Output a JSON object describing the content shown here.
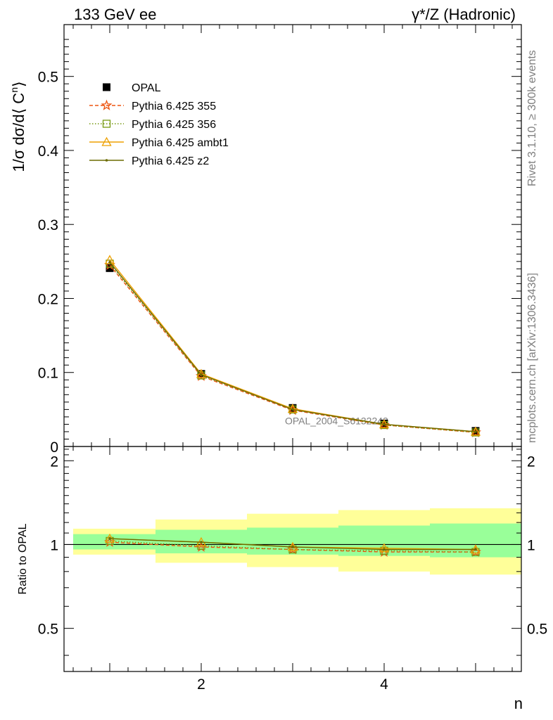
{
  "header": {
    "left_title": "133 GeV ee",
    "right_title": "γ*/Z (Hadronic)"
  },
  "side_labels": {
    "rivet": "Rivet 3.1.10, ≥ 300k events",
    "mcplots": "mcplots.cern.ch [arXiv:1306.3436]"
  },
  "watermark": "OPAL_2004_S6132243",
  "colors": {
    "data": "#000000",
    "p355": "#ee5511",
    "p356": "#779911",
    "ambt1": "#eea000",
    "z2": "#6b6b00",
    "band_inner": "#99ff99",
    "band_outer": "#ffff99"
  },
  "chart_data": [
    {
      "type": "line",
      "panel": "main",
      "ylabel_parts": {
        "prefix": "1/σ dσ/d⟨ C",
        "sup": "n",
        "suffix": "⟩"
      },
      "ylim": [
        0,
        0.57
      ],
      "xlim": [
        0.5,
        5.5
      ],
      "yticks": [
        {
          "v": 0,
          "label": "0"
        },
        {
          "v": 0.1,
          "label": "0.1"
        },
        {
          "v": 0.2,
          "label": "0.2"
        },
        {
          "v": 0.3,
          "label": "0.3"
        },
        {
          "v": 0.4,
          "label": "0.4"
        },
        {
          "v": 0.5,
          "label": "0.5"
        }
      ],
      "x": [
        1,
        2,
        3,
        4,
        5
      ],
      "legend_position": "top-left",
      "legend": [
        {
          "key": "data",
          "label": "OPAL"
        },
        {
          "key": "p355",
          "label": "Pythia 6.425 355"
        },
        {
          "key": "p356",
          "label": "Pythia 6.425 356"
        },
        {
          "key": "ambt1",
          "label": "Pythia 6.425 ambt1"
        },
        {
          "key": "z2",
          "label": "Pythia 6.425 z2"
        }
      ],
      "data": {
        "values": [
          0.241,
          0.098,
          0.052,
          0.031,
          0.021
        ]
      },
      "series": [
        {
          "key": "p355",
          "values": [
            0.245,
            0.095,
            0.049,
            0.029,
            0.019
          ]
        },
        {
          "key": "p356",
          "values": [
            0.247,
            0.096,
            0.05,
            0.029,
            0.019
          ]
        },
        {
          "key": "ambt1",
          "values": [
            0.252,
            0.098,
            0.051,
            0.03,
            0.02
          ]
        },
        {
          "key": "z2",
          "values": [
            0.249,
            0.097,
            0.05,
            0.03,
            0.02
          ]
        }
      ]
    },
    {
      "type": "line",
      "panel": "ratio",
      "ylabel": "Ratio to OPAL",
      "xlabel": "n",
      "ylim": [
        0.35,
        2.25
      ],
      "xlim": [
        0.5,
        5.5
      ],
      "xticks": [
        {
          "v": 2,
          "label": "2"
        },
        {
          "v": 4,
          "label": "4"
        }
      ],
      "yticks": [
        {
          "v": 0.5,
          "label": "0.5"
        },
        {
          "v": 1,
          "label": "1"
        },
        {
          "v": 2,
          "label": "2"
        }
      ],
      "bands": [
        {
          "x0": 0.6,
          "x1": 1.5,
          "inner": [
            0.96,
            1.09
          ],
          "outer": [
            0.92,
            1.14
          ]
        },
        {
          "x0": 1.5,
          "x1": 2.5,
          "inner": [
            0.93,
            1.13
          ],
          "outer": [
            0.86,
            1.23
          ]
        },
        {
          "x0": 2.5,
          "x1": 3.5,
          "inner": [
            0.92,
            1.15
          ],
          "outer": [
            0.83,
            1.29
          ]
        },
        {
          "x0": 3.5,
          "x1": 4.5,
          "inner": [
            0.91,
            1.17
          ],
          "outer": [
            0.8,
            1.33
          ]
        },
        {
          "x0": 4.5,
          "x1": 5.5,
          "inner": [
            0.9,
            1.19
          ],
          "outer": [
            0.78,
            1.35
          ]
        }
      ],
      "series": [
        {
          "key": "p355",
          "values": [
            1.02,
            0.98,
            0.96,
            0.94,
            0.94
          ]
        },
        {
          "key": "p356",
          "values": [
            1.03,
            0.99,
            0.96,
            0.95,
            0.94
          ]
        },
        {
          "key": "ambt1",
          "values": [
            1.05,
            1.02,
            0.98,
            0.97,
            0.96
          ]
        },
        {
          "key": "z2",
          "values": [
            1.05,
            1.02,
            0.98,
            0.96,
            0.96
          ]
        }
      ]
    }
  ]
}
